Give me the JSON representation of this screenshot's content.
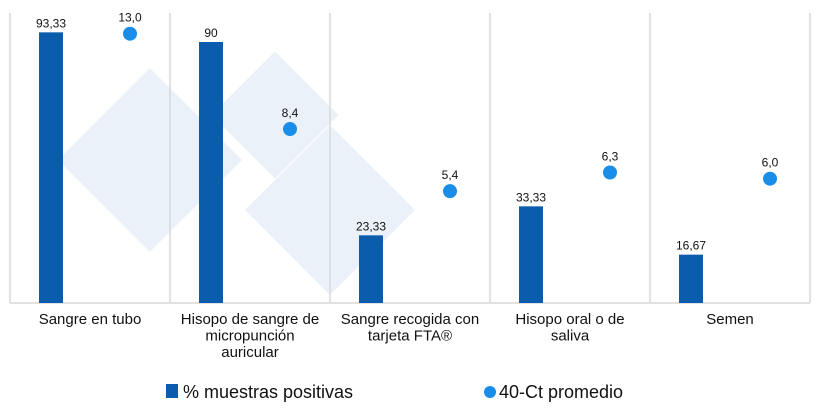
{
  "chart_data": {
    "type": "bar",
    "categories": [
      [
        "Sangre en tubo"
      ],
      [
        "Hisopo de sangre de",
        "micropunción",
        "auricular"
      ],
      [
        "Sangre recogida con",
        "tarjeta FTA®"
      ],
      [
        "Hisopo oral o de",
        "saliva"
      ],
      [
        "Semen"
      ]
    ],
    "series": [
      {
        "name": "% muestras positivas",
        "kind": "bar",
        "axis": "primary",
        "color": "#0b5cad",
        "values": [
          93.33,
          90,
          23.33,
          33.33,
          16.67
        ],
        "labels": [
          "93,33",
          "90",
          "23,33",
          "33,33",
          "16,67"
        ]
      },
      {
        "name": "40-Ct promedio",
        "kind": "scatter",
        "axis": "secondary",
        "color": "#1a8de9",
        "values": [
          13.0,
          8.4,
          5.4,
          6.3,
          6.0
        ],
        "labels": [
          "13,0",
          "8,4",
          "5,4",
          "6,3",
          "6,0"
        ]
      }
    ],
    "ylim": [
      0,
      100
    ],
    "y2lim": [
      0,
      14
    ],
    "grid": false,
    "legend_position": "bottom",
    "title": "",
    "xlabel": "",
    "ylabel": ""
  }
}
